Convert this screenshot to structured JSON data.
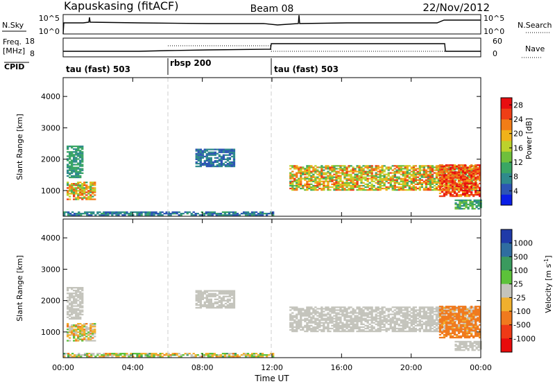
{
  "header": {
    "station": "Kapuskasing (fitACF)",
    "beam": "Beam 08",
    "date": "22/Nov/2012"
  },
  "nsky_panel": {
    "left_label": "N.Sky",
    "left_ticks": [
      "10^5",
      "10^0"
    ],
    "right_ticks": [
      "10^5",
      "10^0"
    ],
    "right_label": "N.Search"
  },
  "freq_panel": {
    "left_label_line1": "Freq.",
    "left_label_line2": "[MHz]",
    "left_ticks": [
      "18",
      "8"
    ],
    "right_ticks": [
      "60",
      "0"
    ],
    "right_label": "Nave"
  },
  "cpid": {
    "label": "CPID",
    "segments": [
      {
        "name": "tau (fast) 503",
        "start_hour": 0,
        "end_hour": 6
      },
      {
        "name": "rbsp 200",
        "start_hour": 6,
        "end_hour": 12
      },
      {
        "name": "tau (fast) 503",
        "start_hour": 12,
        "end_hour": 24
      }
    ]
  },
  "x_axis": {
    "label": "Time UT",
    "ticks": [
      "00:00",
      "04:00",
      "08:00",
      "12:00",
      "16:00",
      "20:00",
      "00:00"
    ]
  },
  "colorbars": {
    "power": {
      "label": "Power [dB]",
      "ticks": [
        "28",
        "24",
        "20",
        "16",
        "12",
        "8",
        "4"
      ],
      "colors": [
        "#0a1ee6",
        "#2d55b4",
        "#2f8a8c",
        "#3aa664",
        "#6fbf3c",
        "#bcd22c",
        "#f0b21a",
        "#f27d17",
        "#ee3e16",
        "#e80e10"
      ]
    },
    "velocity": {
      "label": "Velocity [m s^-1]",
      "ticks": [
        "1000",
        "500",
        "100",
        "25",
        "-25",
        "-100",
        "-500",
        "-1000"
      ],
      "colors": [
        "#1f3aa8",
        "#2f6da0",
        "#3a9a5e",
        "#5cc23a",
        "#c4c4bc",
        "#f0b02e",
        "#f07a1e",
        "#ee3a16",
        "#e80c0c"
      ]
    }
  },
  "chart_data": [
    {
      "type": "heatmap",
      "title": "",
      "xlabel": "Time UT",
      "ylabel": "Slant Range [km]",
      "xlim_hours": [
        0,
        24
      ],
      "ylim_km": [
        180,
        4600
      ],
      "yticks": [
        1000,
        2000,
        3000,
        4000
      ],
      "quantity": "Power [dB]",
      "value_range": [
        0,
        30
      ],
      "regions": [
        {
          "t": [
            0.2,
            1.1
          ],
          "r": [
            1400,
            2400
          ],
          "v": [
            6,
            12
          ]
        },
        {
          "t": [
            0.2,
            1.8
          ],
          "r": [
            700,
            1250
          ],
          "v": [
            10,
            26
          ]
        },
        {
          "t": [
            0.0,
            12.0
          ],
          "r": [
            200,
            330
          ],
          "v": [
            4,
            10
          ]
        },
        {
          "t": [
            7.6,
            9.8
          ],
          "r": [
            1750,
            2300
          ],
          "v": [
            4,
            9
          ]
        },
        {
          "t": [
            13.0,
            23.8
          ],
          "r": [
            1000,
            1800
          ],
          "v": [
            10,
            26
          ]
        },
        {
          "t": [
            21.6,
            24.0
          ],
          "r": [
            800,
            1800
          ],
          "v": [
            20,
            30
          ]
        },
        {
          "t": [
            22.5,
            24.0
          ],
          "r": [
            400,
            700
          ],
          "v": [
            6,
            14
          ]
        }
      ]
    },
    {
      "type": "heatmap",
      "title": "",
      "xlabel": "Time UT",
      "ylabel": "Slant Range [km]",
      "xlim_hours": [
        0,
        24
      ],
      "ylim_km": [
        180,
        4600
      ],
      "yticks": [
        1000,
        2000,
        3000,
        4000
      ],
      "quantity": "Velocity [m s^-1]",
      "value_range": [
        -1000,
        1000
      ],
      "regions": [
        {
          "t": [
            0.2,
            1.1
          ],
          "r": [
            1400,
            2400
          ],
          "v": [
            -20,
            20
          ]
        },
        {
          "t": [
            0.2,
            1.8
          ],
          "r": [
            700,
            1250
          ],
          "v": [
            -150,
            60
          ]
        },
        {
          "t": [
            0.0,
            12.0
          ],
          "r": [
            200,
            330
          ],
          "v": [
            -120,
            120
          ]
        },
        {
          "t": [
            7.6,
            9.8
          ],
          "r": [
            1750,
            2300
          ],
          "v": [
            -20,
            20
          ]
        },
        {
          "t": [
            13.0,
            23.8
          ],
          "r": [
            1000,
            1800
          ],
          "v": [
            -20,
            20
          ]
        },
        {
          "t": [
            21.6,
            24.0
          ],
          "r": [
            800,
            1800
          ],
          "v": [
            -500,
            -50
          ]
        },
        {
          "t": [
            22.5,
            24.0
          ],
          "r": [
            400,
            700
          ],
          "v": [
            -20,
            20
          ]
        }
      ]
    }
  ]
}
